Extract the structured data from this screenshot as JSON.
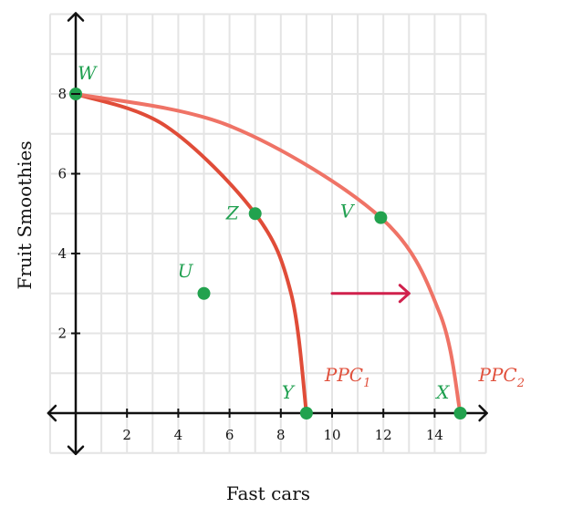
{
  "chart_data": {
    "type": "line",
    "xlabel": "Fast cars",
    "ylabel": "Fruit Smoothies",
    "xlim": [
      -1,
      16
    ],
    "ylim": [
      -1,
      10
    ],
    "grid": true,
    "x_ticks": [
      "2",
      "4",
      "6",
      "8",
      "10",
      "12",
      "14"
    ],
    "y_ticks": [
      "2",
      "4",
      "6",
      "8"
    ],
    "series": [
      {
        "name": "PPC",
        "subscript": "1",
        "color": "#e04c38",
        "points": [
          [
            0,
            8
          ],
          [
            3.5,
            7.2
          ],
          [
            7,
            5
          ],
          [
            8.4,
            3
          ],
          [
            9,
            0
          ]
        ]
      },
      {
        "name": "PPC",
        "subscript": "2",
        "color": "#ef7366",
        "points": [
          [
            0,
            8
          ],
          [
            6,
            7.2
          ],
          [
            11.9,
            4.9
          ],
          [
            14.2,
            2.5
          ],
          [
            15,
            0
          ]
        ]
      }
    ],
    "points": [
      {
        "label": "W",
        "x": 0,
        "y": 8
      },
      {
        "label": "Z",
        "x": 7,
        "y": 5
      },
      {
        "label": "V",
        "x": 11.9,
        "y": 4.9
      },
      {
        "label": "U",
        "x": 5,
        "y": 3
      },
      {
        "label": "Y",
        "x": 9,
        "y": 0
      },
      {
        "label": "X",
        "x": 15,
        "y": 0
      }
    ],
    "arrow": {
      "from": [
        10,
        3
      ],
      "to": [
        13,
        3
      ],
      "color": "#d0204c"
    }
  }
}
